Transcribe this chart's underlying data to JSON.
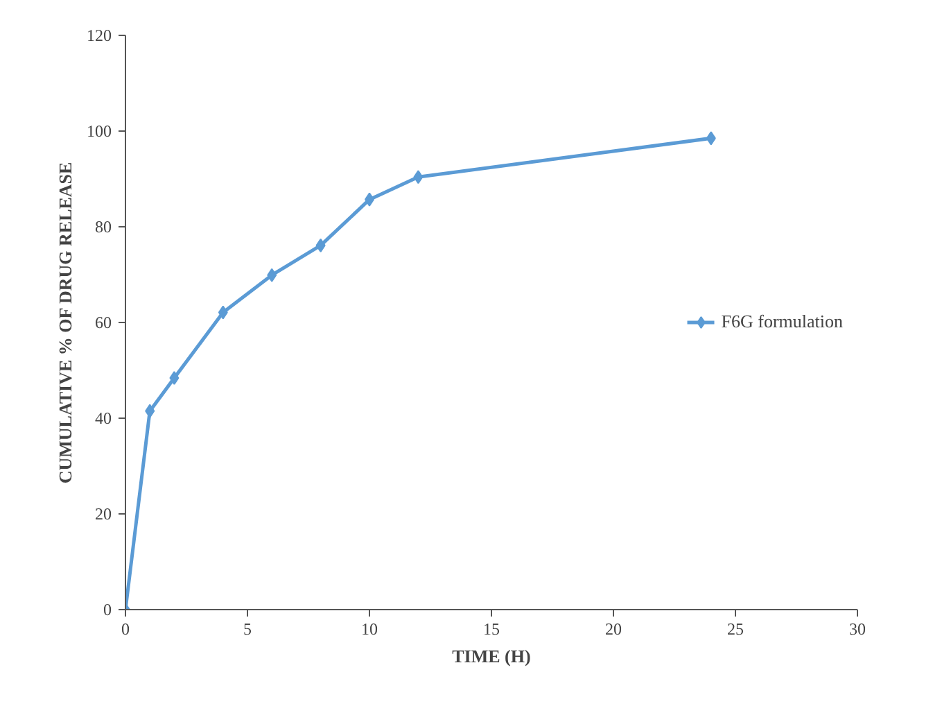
{
  "chart_data": {
    "type": "line",
    "xlabel": "TIME (H)",
    "ylabel": "CUMULATIVE % OF DRUG RELEASE",
    "x": [
      0,
      1,
      2,
      4,
      6,
      8,
      10,
      12,
      24
    ],
    "series": [
      {
        "name": "F6G formulation",
        "color": "#5b9bd5",
        "values": [
          0,
          41.5,
          48.4,
          62.1,
          69.9,
          76.1,
          85.7,
          90.4,
          98.5
        ]
      }
    ],
    "xlim": [
      0,
      30
    ],
    "xticks": [
      0,
      5,
      10,
      15,
      20,
      25,
      30
    ],
    "ylim": [
      0,
      120
    ],
    "yticks": [
      0,
      20,
      40,
      60,
      80,
      100,
      120
    ],
    "grid": false,
    "legend": "right",
    "marker": "diamond",
    "line_style": "solid"
  }
}
